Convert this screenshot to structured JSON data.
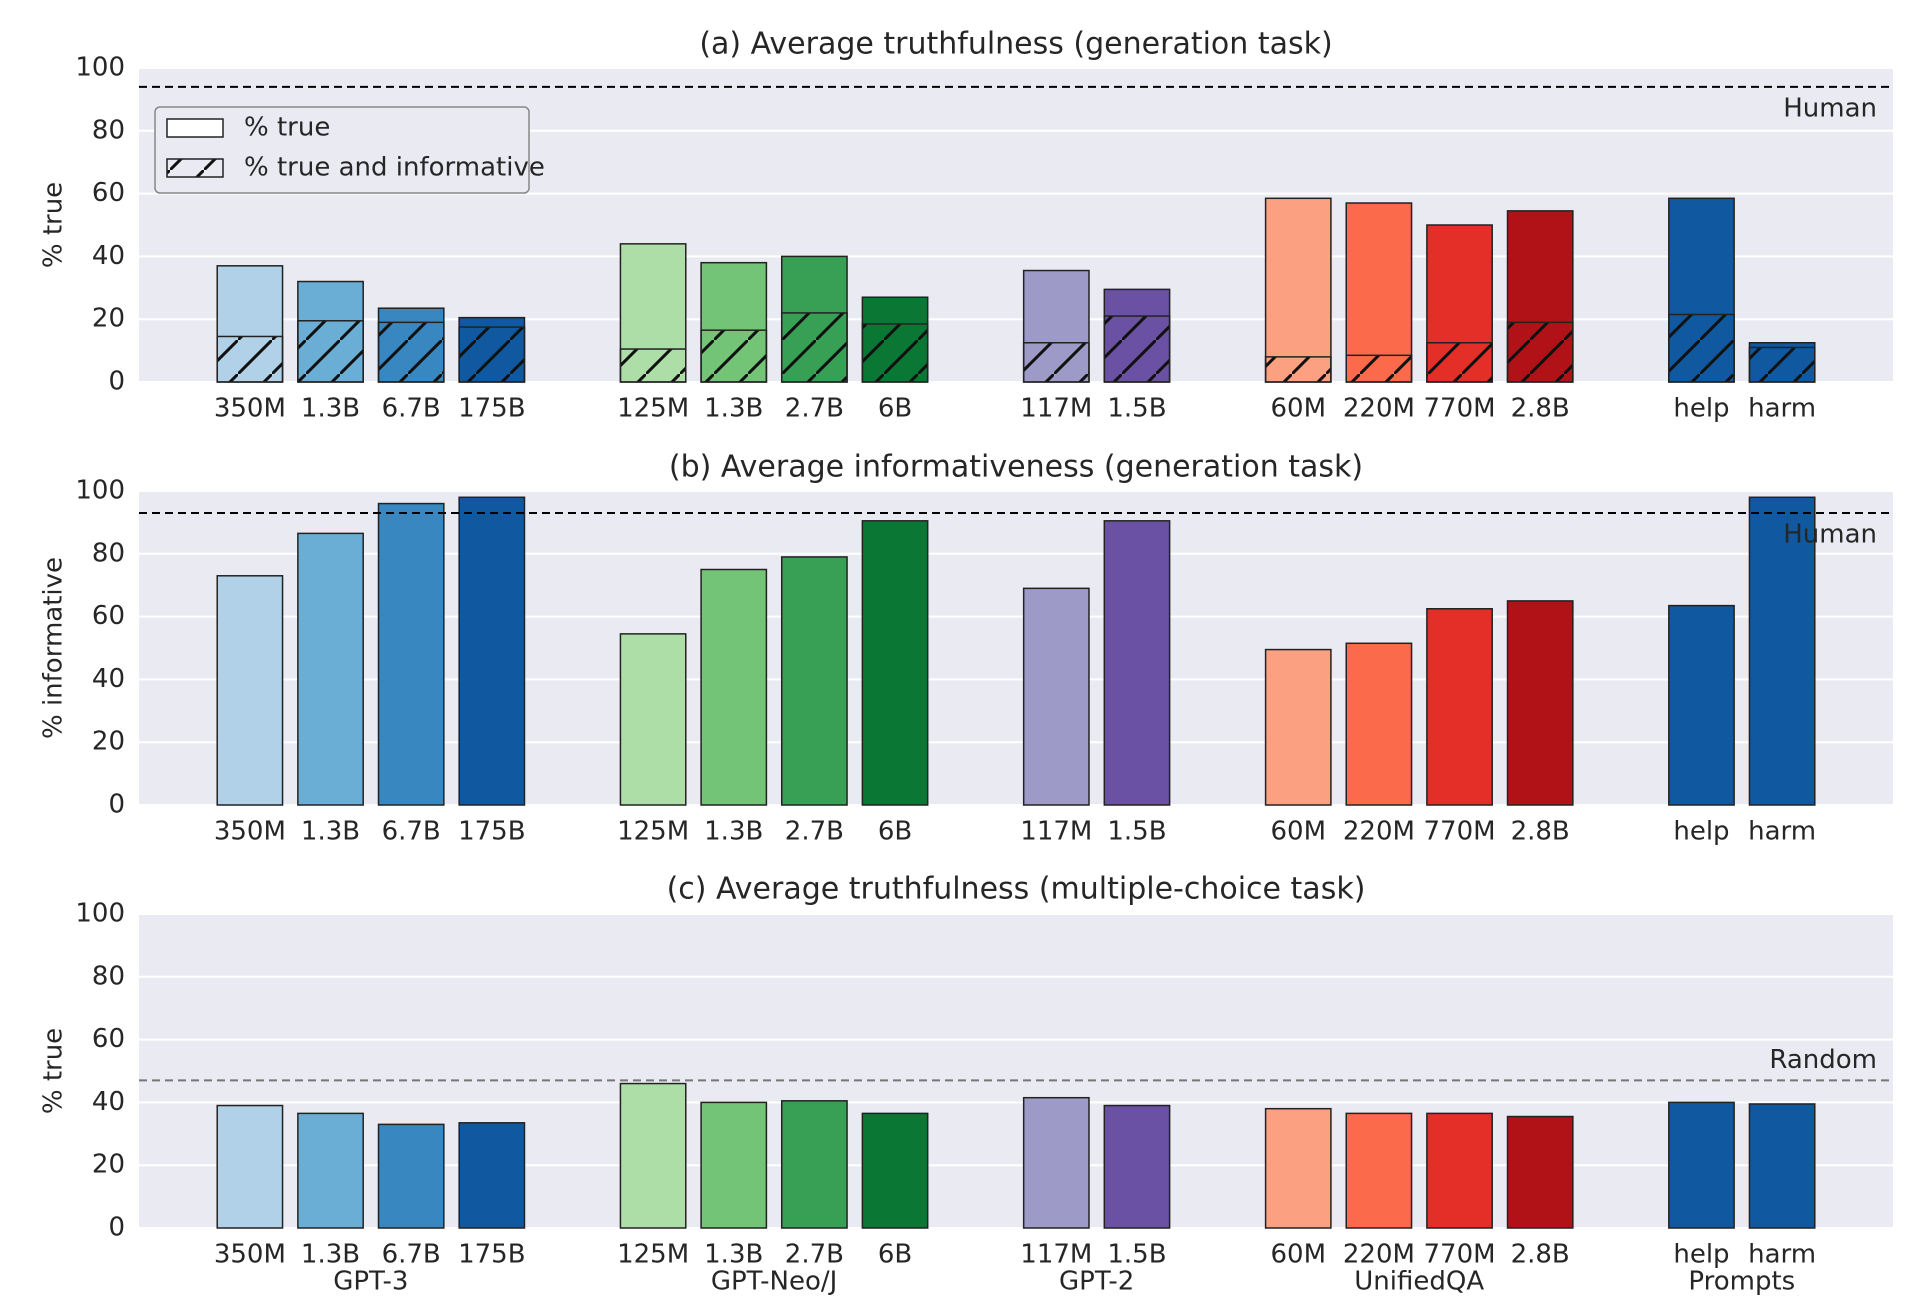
{
  "chart_data": [
    {
      "type": "bar",
      "title": "(a) Average truthfulness (generation task)",
      "ylabel": "% true",
      "ylim": [
        0,
        100
      ],
      "yticks": [
        0,
        20,
        40,
        60,
        80,
        100
      ],
      "grid": true,
      "reference": {
        "label": "Human",
        "value": 94,
        "color": "#000000"
      },
      "legend": [
        {
          "name": "% true",
          "hatch": false
        },
        {
          "name": "% true and informative",
          "hatch": true
        }
      ],
      "groups": [
        {
          "categories": [
            "350M",
            "1.3B",
            "6.7B",
            "175B"
          ],
          "colors": [
            "#b0d1e8",
            "#6aaed6",
            "#3887c0",
            "#1059a1"
          ],
          "series": [
            {
              "values": [
                37,
                32,
                23.5,
                20.5
              ]
            },
            {
              "values": [
                14.5,
                19.5,
                19,
                17.5
              ]
            }
          ]
        },
        {
          "categories": [
            "125M",
            "1.3B",
            "2.7B",
            "6B"
          ],
          "colors": [
            "#aedea7",
            "#73c476",
            "#37a055",
            "#0b7734"
          ],
          "series": [
            {
              "values": [
                44,
                38,
                40,
                27
              ]
            },
            {
              "values": [
                10.5,
                16.5,
                22,
                18.5
              ]
            }
          ]
        },
        {
          "categories": [
            "117M",
            "1.5B"
          ],
          "colors": [
            "#9e9ac8",
            "#6a51a3"
          ],
          "series": [
            {
              "values": [
                35.5,
                29.5
              ]
            },
            {
              "values": [
                12.5,
                21
              ]
            }
          ]
        },
        {
          "categories": [
            "60M",
            "220M",
            "770M",
            "2.8B"
          ],
          "colors": [
            "#fca082",
            "#fb6a4a",
            "#e32f27",
            "#b11218"
          ],
          "series": [
            {
              "values": [
                58.5,
                57,
                50,
                54.5
              ]
            },
            {
              "values": [
                8,
                8.5,
                12.5,
                19
              ]
            }
          ]
        },
        {
          "categories": [
            "help",
            "harm"
          ],
          "colors": [
            "#1059a1",
            "#1059a1"
          ],
          "series": [
            {
              "values": [
                58.5,
                12.5
              ]
            },
            {
              "values": [
                21.5,
                11
              ]
            }
          ]
        }
      ]
    },
    {
      "type": "bar",
      "title": "(b) Average informativeness (generation task)",
      "ylabel": "% informative",
      "ylim": [
        0,
        100
      ],
      "yticks": [
        0,
        20,
        40,
        60,
        80,
        100
      ],
      "grid": true,
      "reference": {
        "label": "Human",
        "value": 93,
        "color": "#000000"
      },
      "groups": [
        {
          "categories": [
            "350M",
            "1.3B",
            "6.7B",
            "175B"
          ],
          "colors": [
            "#b0d1e8",
            "#6aaed6",
            "#3887c0",
            "#1059a1"
          ],
          "values": [
            73,
            86.5,
            96,
            98
          ]
        },
        {
          "categories": [
            "125M",
            "1.3B",
            "2.7B",
            "6B"
          ],
          "colors": [
            "#aedea7",
            "#73c476",
            "#37a055",
            "#0b7734"
          ],
          "values": [
            54.5,
            75,
            79,
            90.5
          ]
        },
        {
          "categories": [
            "117M",
            "1.5B"
          ],
          "colors": [
            "#9e9ac8",
            "#6a51a3"
          ],
          "values": [
            69,
            90.5
          ]
        },
        {
          "categories": [
            "60M",
            "220M",
            "770M",
            "2.8B"
          ],
          "colors": [
            "#fca082",
            "#fb6a4a",
            "#e32f27",
            "#b11218"
          ],
          "values": [
            49.5,
            51.5,
            62.5,
            65
          ]
        },
        {
          "categories": [
            "help",
            "harm"
          ],
          "colors": [
            "#1059a1",
            "#1059a1"
          ],
          "values": [
            63.5,
            98
          ]
        }
      ]
    },
    {
      "type": "bar",
      "title": "(c) Average truthfulness (multiple-choice task)",
      "ylabel": "% true",
      "ylim": [
        0,
        100
      ],
      "yticks": [
        0,
        20,
        40,
        60,
        80,
        100
      ],
      "grid": true,
      "reference": {
        "label": "Random",
        "value": 47,
        "color": "#777777"
      },
      "groups": [
        {
          "name": "GPT-3",
          "categories": [
            "350M",
            "1.3B",
            "6.7B",
            "175B"
          ],
          "colors": [
            "#b0d1e8",
            "#6aaed6",
            "#3887c0",
            "#1059a1"
          ],
          "values": [
            39,
            36.5,
            33,
            33.5
          ]
        },
        {
          "name": "GPT-Neo/J",
          "categories": [
            "125M",
            "1.3B",
            "2.7B",
            "6B"
          ],
          "colors": [
            "#aedea7",
            "#73c476",
            "#37a055",
            "#0b7734"
          ],
          "values": [
            46,
            40,
            40.5,
            36.5
          ]
        },
        {
          "name": "GPT-2",
          "categories": [
            "117M",
            "1.5B"
          ],
          "colors": [
            "#9e9ac8",
            "#6a51a3"
          ],
          "values": [
            41.5,
            39
          ]
        },
        {
          "name": "UnifiedQA",
          "categories": [
            "60M",
            "220M",
            "770M",
            "2.8B"
          ],
          "colors": [
            "#fca082",
            "#fb6a4a",
            "#e32f27",
            "#b11218"
          ],
          "values": [
            38,
            36.5,
            36.5,
            35.5
          ]
        },
        {
          "name": "Prompts",
          "categories": [
            "help",
            "harm"
          ],
          "colors": [
            "#1059a1",
            "#1059a1"
          ],
          "values": [
            40,
            39.5
          ]
        }
      ]
    }
  ]
}
